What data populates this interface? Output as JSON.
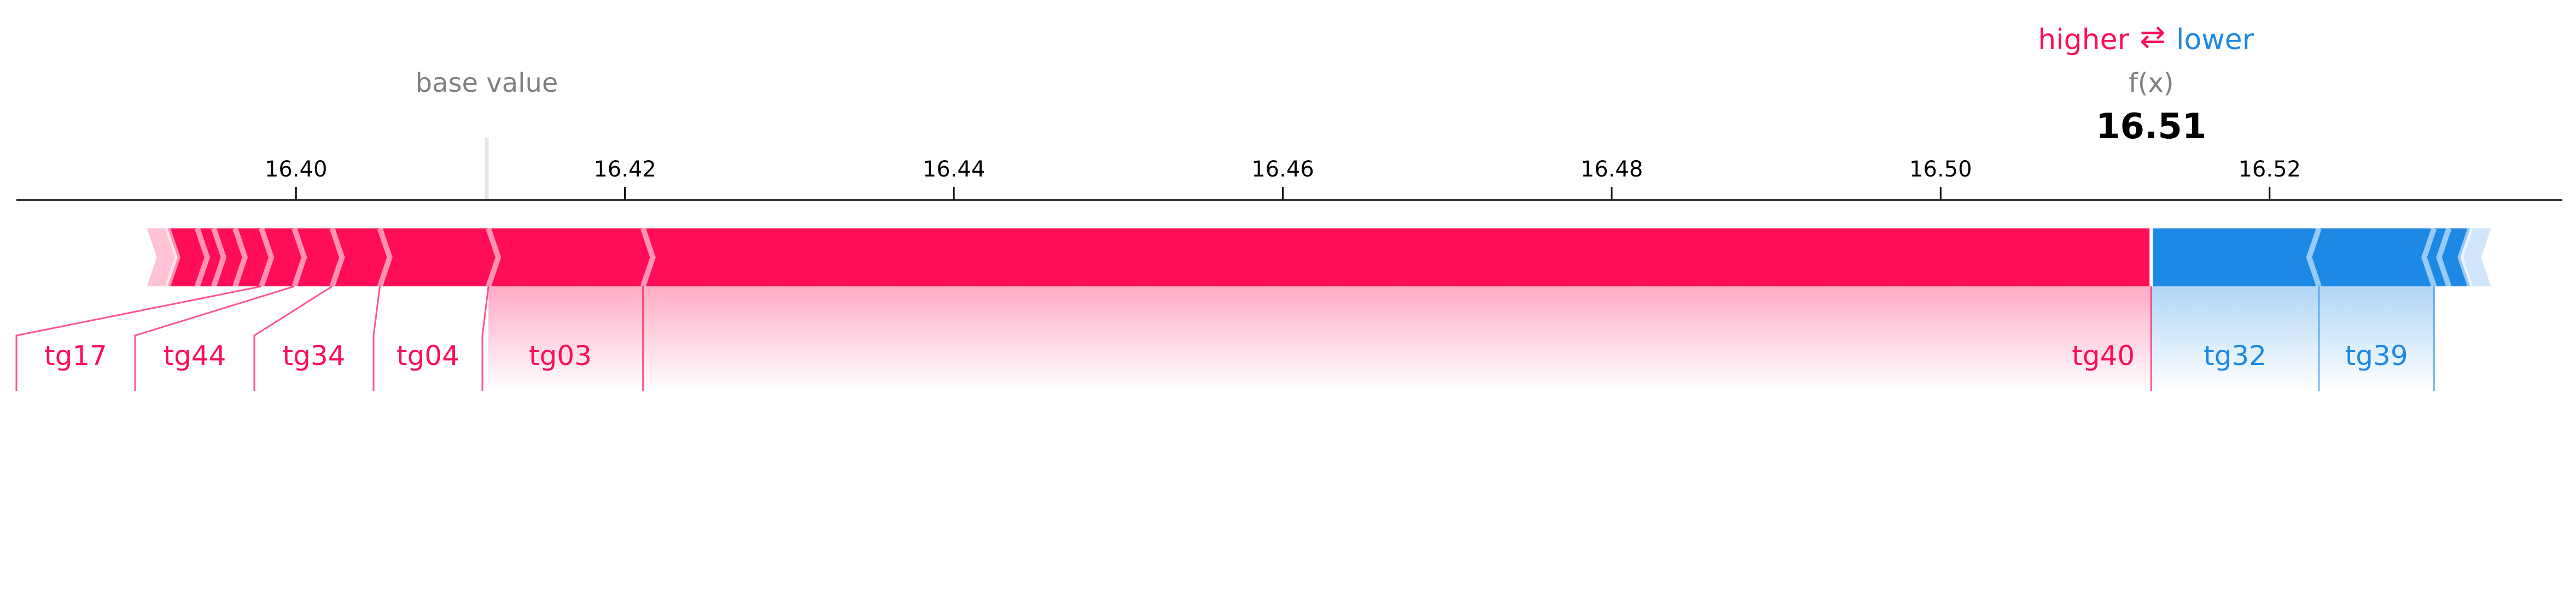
{
  "colors": {
    "positive": "#ff0d57",
    "negative": "#1e88e5",
    "positive_light": "#ffc3d5",
    "negative_light": "#d1e6fa",
    "muted": "#808080",
    "text": "#000000"
  },
  "chart_data": {
    "type": "force",
    "legend": {
      "higher": "higher",
      "arrows": "⇄",
      "lower": "lower"
    },
    "base_value": {
      "label": "base value",
      "value": 16.4116
    },
    "output": {
      "label": "f(x)",
      "value": 16.5128,
      "display": "16.51"
    },
    "x_ticks": [
      16.4,
      16.42,
      16.44,
      16.46,
      16.48,
      16.5,
      16.52
    ],
    "x_tick_labels": [
      "16.40",
      "16.42",
      "16.44",
      "16.46",
      "16.48",
      "16.50",
      "16.52"
    ],
    "xlim": [
      16.383,
      16.5378
    ],
    "positive_features": [
      {
        "name": "tg40",
        "from": 16.4211,
        "to": 16.5128
      },
      {
        "name": "tg03",
        "from": 16.4117,
        "to": 16.4211
      },
      {
        "name": "tg04",
        "from": 16.4051,
        "to": 16.4117
      },
      {
        "name": "tg34",
        "from": 16.4022,
        "to": 16.4051
      },
      {
        "name": "tg44",
        "from": 16.3999,
        "to": 16.4022
      },
      {
        "name": "tg17",
        "from": 16.3979,
        "to": 16.3999
      },
      {
        "name": "",
        "from": 16.3963,
        "to": 16.3979
      },
      {
        "name": "",
        "from": 16.395,
        "to": 16.3963
      },
      {
        "name": "",
        "from": 16.394,
        "to": 16.395
      },
      {
        "name": "",
        "from": 16.3922,
        "to": 16.394
      }
    ],
    "negative_features": [
      {
        "name": "tg32",
        "from": 16.5128,
        "to": 16.523
      },
      {
        "name": "tg39",
        "from": 16.523,
        "to": 16.53
      },
      {
        "name": "",
        "from": 16.53,
        "to": 16.5309
      },
      {
        "name": "",
        "from": 16.5309,
        "to": 16.5322
      }
    ]
  }
}
